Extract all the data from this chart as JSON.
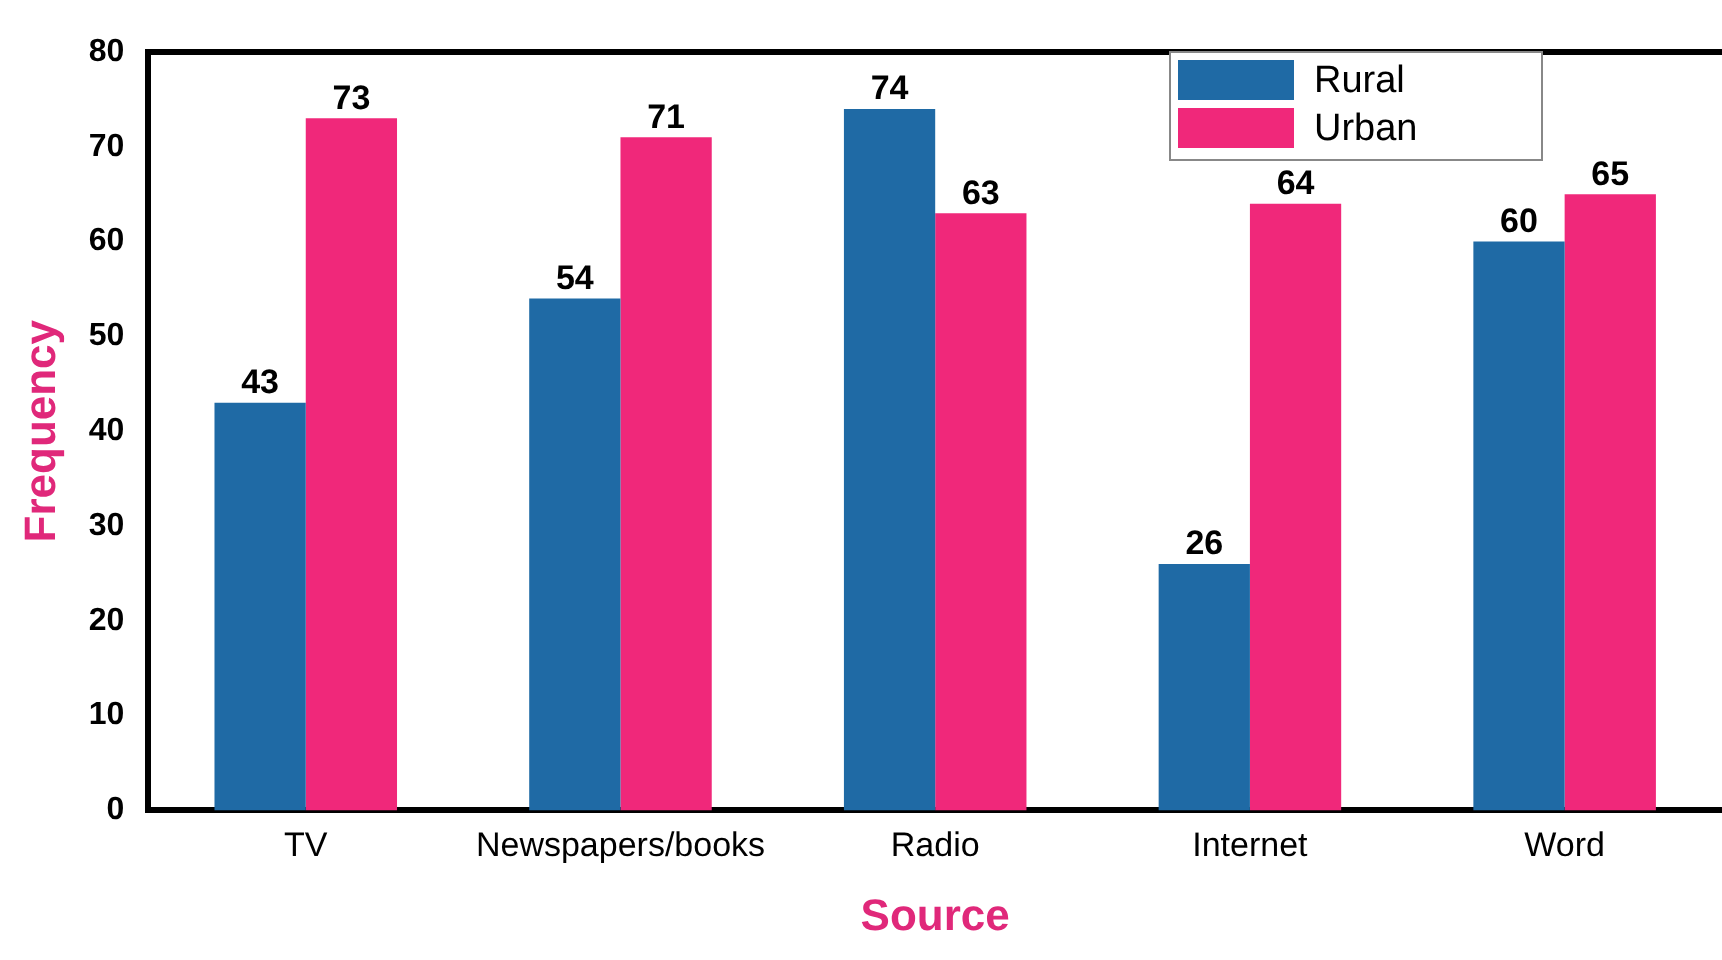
{
  "chart_data": {
    "type": "bar",
    "xlabel": "Source",
    "ylabel": "Frequency",
    "categories": [
      "TV",
      "Newspapers/books",
      "Radio",
      "Internet",
      "Word"
    ],
    "series": [
      {
        "name": "Rural",
        "color": "#1f6aa5",
        "values": [
          43,
          54,
          74,
          26,
          60
        ]
      },
      {
        "name": "Urban",
        "color": "#f0287a",
        "values": [
          73,
          71,
          63,
          64,
          65
        ]
      }
    ],
    "ylim": [
      0,
      80
    ],
    "yticks": [
      0,
      10,
      20,
      30,
      40,
      50,
      60,
      70,
      80
    ],
    "grid": false,
    "legend": "top right",
    "data_labels": true
  }
}
